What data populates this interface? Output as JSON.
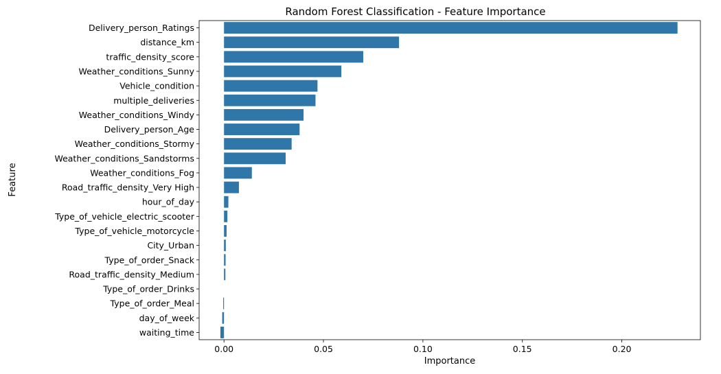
{
  "chart_data": {
    "type": "bar",
    "orientation": "horizontal",
    "title": "Random Forest Classification - Feature Importance",
    "xlabel": "Importance",
    "ylabel": "Feature",
    "xlim": [
      -0.0125,
      0.2395
    ],
    "xticks": [
      0.0,
      0.05,
      0.1,
      0.15,
      0.2
    ],
    "xtick_labels": [
      "0.00",
      "0.05",
      "0.10",
      "0.15",
      "0.20"
    ],
    "grid": false,
    "legend": "none",
    "bar_color": "#2f76a9",
    "categories": [
      "Delivery_person_Ratings",
      "distance_km",
      "traffic_density_score",
      "Weather_conditions_Sunny",
      "Vehicle_condition",
      "multiple_deliveries",
      "Weather_conditions_Windy",
      "Delivery_person_Age",
      "Weather_conditions_Stormy",
      "Weather_conditions_Sandstorms",
      "Weather_conditions_Fog",
      "Road_traffic_density_Very High",
      "hour_of_day",
      "Type_of_vehicle_electric_scooter",
      "Type_of_vehicle_motorcycle",
      "City_Urban",
      "Type_of_order_Snack",
      "Road_traffic_density_Medium",
      "Type_of_order_Drinks",
      "Type_of_order_Meal",
      "day_of_week",
      "waiting_time"
    ],
    "values": [
      0.228,
      0.088,
      0.07,
      0.059,
      0.047,
      0.046,
      0.04,
      0.038,
      0.034,
      0.031,
      0.014,
      0.0075,
      0.0022,
      0.0017,
      0.0013,
      0.0009,
      0.0008,
      0.0007,
      0.0,
      -0.0004,
      -0.0009,
      -0.0018
    ]
  }
}
